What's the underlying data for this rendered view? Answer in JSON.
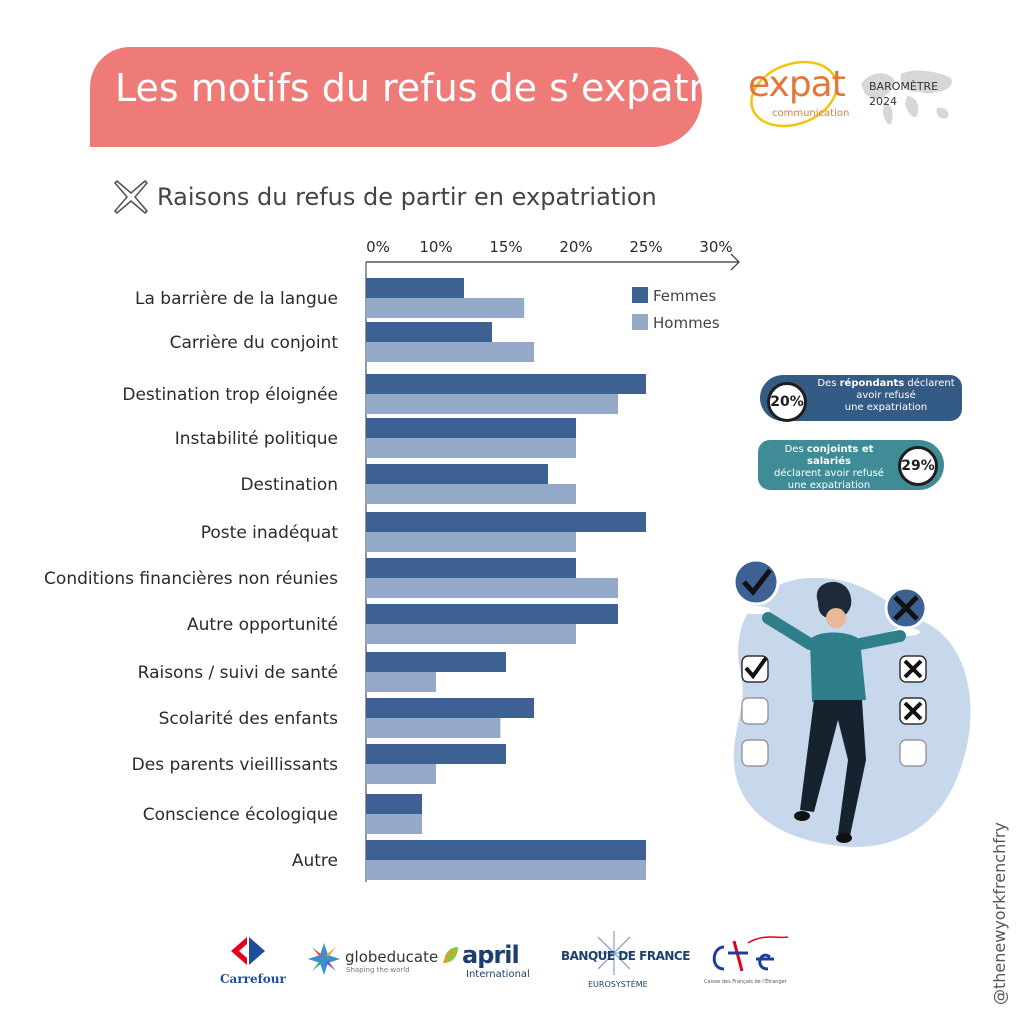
{
  "header": {
    "title": "Les motifs du refus de s’expatrier",
    "brand_word": "expat",
    "brand_sub": "communication",
    "barometer_l1": "BAROMÈTRE",
    "barometer_l2": "2024"
  },
  "subtitle": "Raisons du refus de partir en expatriation",
  "colors": {
    "femmes": "#3d6192",
    "hommes": "#93a9c7",
    "banner": "#ef7b78",
    "stat_dark": "#345a86",
    "stat_teal": "#3f8c97"
  },
  "chart_data": {
    "type": "bar",
    "orientation": "horizontal",
    "categories": [
      "La barrière de la langue",
      "Carrière du conjoint",
      "Destination trop éloignée",
      "Instabilité politique",
      "Destination",
      "Poste inadéquat",
      "Conditions financières non réunies",
      "Autre opportunité",
      "Raisons / suivi de santé",
      "Scolarité des enfants",
      "Des parents vieillissants",
      "Conscience écologique",
      "Autre"
    ],
    "series": [
      {
        "name": "Femmes",
        "values": [
          7,
          9,
          20,
          15,
          13,
          20,
          15,
          18,
          10,
          12,
          10,
          4,
          20
        ]
      },
      {
        "name": "Hommes",
        "values": [
          11.3,
          12,
          18,
          15,
          15,
          15,
          18,
          15,
          5,
          9.6,
          5,
          4,
          20
        ]
      }
    ],
    "xlim": [
      0,
      30
    ],
    "ticks": [
      "0%",
      "10%",
      "15%",
      "20%",
      "25%",
      "30%"
    ],
    "legend_position": "top-right"
  },
  "stats": [
    {
      "value": "20%",
      "line1": "Des ",
      "bold": "répondants",
      "line1b": " déclarent",
      "line2": "avoir refusé",
      "line3": "une expatriation"
    },
    {
      "value": "29%",
      "line1": "Des ",
      "bold": "conjoints et salariés",
      "line1b": "",
      "line2": "déclarent avoir refusé",
      "line3": "une expatriation"
    }
  ],
  "watermark": "@thenewyorkfrenchfry",
  "partners": {
    "carrefour": "Carrefour",
    "globeducate": "globeducate",
    "globeducate_tag": "Shaping the world",
    "april": "april",
    "april_sub": "International",
    "bdf": "BANQUE DE FRANCE",
    "bdf_sub": "EUROSYSTÈME",
    "cfe_sub": "Caisse des Français de l'Étranger"
  }
}
